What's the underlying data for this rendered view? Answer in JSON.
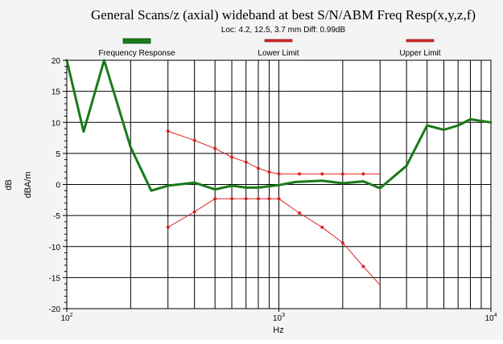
{
  "chart_data": {
    "type": "line",
    "title": "General Scans/z (axial) wideband at best S/N/ABM Freq Resp(x,y,z,f)",
    "subtitle": "Loc: 4.2, 12.5, 3.7 mm Diff: 0.99dB",
    "xlabel": "Hz",
    "ylabel": "dB",
    "ylabel_secondary": "dBA/m",
    "xscale": "log",
    "xlim": [
      100,
      10000
    ],
    "ylim": [
      -20,
      20
    ],
    "x_tick_labels": [
      {
        "value": 100,
        "base": "10",
        "exp": "2"
      },
      {
        "value": 1000,
        "base": "10",
        "exp": "3"
      },
      {
        "value": 10000,
        "base": "10",
        "exp": "4"
      }
    ],
    "y_ticks": [
      -20,
      -15,
      -10,
      -5,
      0,
      5,
      10,
      15,
      20
    ],
    "grid": true,
    "legend_position": "top",
    "series": [
      {
        "name": "Frequency Response",
        "color": "#1a7a1a",
        "x": [
          100,
          120,
          150,
          200,
          250,
          300,
          400,
          500,
          600,
          700,
          800,
          900,
          1000,
          1200,
          1600,
          2000,
          2500,
          3000,
          4000,
          5000,
          6000,
          7000,
          8000,
          10000
        ],
        "y": [
          20,
          8.5,
          20,
          6,
          -1,
          -0.2,
          0.3,
          -0.8,
          -0.2,
          -0.5,
          -0.5,
          -0.3,
          -0.1,
          0.4,
          0.6,
          0.2,
          0.5,
          -0.6,
          3,
          9.5,
          8.8,
          9.5,
          10.5,
          10
        ]
      },
      {
        "name": "Lower Limit",
        "color": "#dd2222",
        "x": [
          300,
          400,
          500,
          600,
          700,
          800,
          900,
          1000,
          1250,
          1600,
          2000,
          2500,
          3000
        ],
        "y": [
          -6.9,
          -4.4,
          -2.3,
          -2.3,
          -2.3,
          -2.3,
          -2.3,
          -2.3,
          -4.6,
          -6.9,
          -9.4,
          -13.2,
          -16.2
        ]
      },
      {
        "name": "Upper Limit",
        "color": "#dd2222",
        "x": [
          300,
          400,
          500,
          600,
          700,
          800,
          900,
          1000,
          1250,
          1600,
          2000,
          2500,
          3000
        ],
        "y": [
          8.6,
          7.1,
          5.8,
          4.4,
          3.6,
          2.6,
          2.0,
          1.7,
          1.7,
          1.7,
          1.7,
          1.7,
          1.7
        ]
      }
    ]
  }
}
